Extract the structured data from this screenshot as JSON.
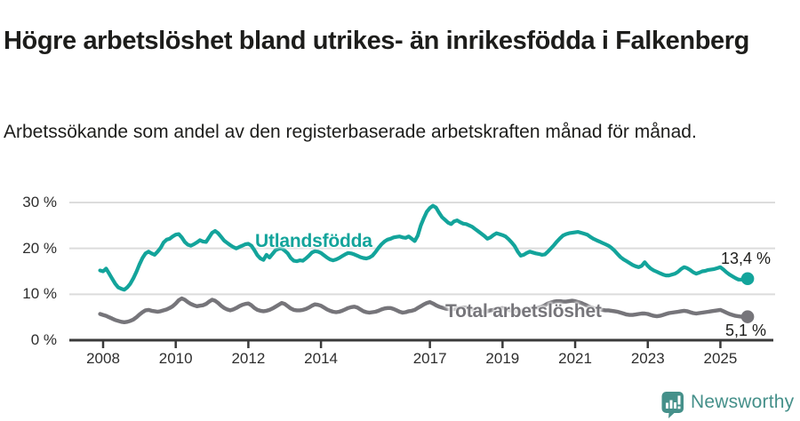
{
  "header": {
    "title": "Högre arbetslöshet bland utrikes- än inrikesfödda i Falkenberg",
    "subtitle": "Arbetssökande som andel av den registerbaserade arbetskraften månad för månad."
  },
  "chart_data": {
    "type": "line",
    "title": "Högre arbetslöshet bland utrikes- än inrikesfödda i Falkenberg",
    "x_start": 2007.917,
    "x_step": 0.08333,
    "x_axis": {
      "ticks": [
        2008,
        2010,
        2012,
        2014,
        2017,
        2019,
        2021,
        2023,
        2025
      ],
      "labels": [
        "2008",
        "2010",
        "2012",
        "2014",
        "2017",
        "2019",
        "2021",
        "2023",
        "2025"
      ]
    },
    "y_axis": {
      "tick_values": [
        0,
        10,
        20,
        30
      ],
      "labels": [
        "0 %",
        "10 %",
        "20 %",
        "30 %"
      ],
      "range": [
        0,
        32
      ],
      "unit": "%",
      "grid": true
    },
    "colors": {
      "grid": "#dcdcdc",
      "axis": "#3a3a3a",
      "text": "#2e2e2e"
    },
    "series": [
      {
        "name": "Utlandsfödda",
        "color": "#13a49b",
        "end_label": "13,4 %",
        "end_value": 13.4,
        "values": [
          15.2,
          15.0,
          15.6,
          14.5,
          13.4,
          12.3,
          11.5,
          11.2,
          11.0,
          11.5,
          12.3,
          13.5,
          14.9,
          16.5,
          17.9,
          18.9,
          19.3,
          18.9,
          18.6,
          19.3,
          20.1,
          21.3,
          21.9,
          22.1,
          22.6,
          23.0,
          23.1,
          22.4,
          21.4,
          20.8,
          20.6,
          20.9,
          21.3,
          21.8,
          21.5,
          21.4,
          22.4,
          23.4,
          23.8,
          23.3,
          22.5,
          21.7,
          21.2,
          20.7,
          20.3,
          20.0,
          20.3,
          20.6,
          20.9,
          21.0,
          20.6,
          19.6,
          18.5,
          17.8,
          17.5,
          18.6,
          18.0,
          18.8,
          19.6,
          19.9,
          20.0,
          19.5,
          18.9,
          17.9,
          17.3,
          17.2,
          17.4,
          17.3,
          17.8,
          18.4,
          19.1,
          19.4,
          19.3,
          19.0,
          18.5,
          18.0,
          17.6,
          17.4,
          17.6,
          17.9,
          18.3,
          18.7,
          19.0,
          18.9,
          18.7,
          18.4,
          18.1,
          17.9,
          17.8,
          18.0,
          18.4,
          19.2,
          20.1,
          20.9,
          21.5,
          21.9,
          22.1,
          22.4,
          22.5,
          22.6,
          22.4,
          22.3,
          22.6,
          22.1,
          21.6,
          22.8,
          25.0,
          26.6,
          28.0,
          28.8,
          29.3,
          28.9,
          27.8,
          26.8,
          26.2,
          25.6,
          25.3,
          25.9,
          26.1,
          25.7,
          25.4,
          25.3,
          25.0,
          24.7,
          24.2,
          23.7,
          23.2,
          22.7,
          22.1,
          22.4,
          22.9,
          23.3,
          23.1,
          22.9,
          22.6,
          22.0,
          21.3,
          20.5,
          19.3,
          18.4,
          18.6,
          19.0,
          19.3,
          19.1,
          18.9,
          18.8,
          18.6,
          18.7,
          19.3,
          20.0,
          20.7,
          21.5,
          22.2,
          22.8,
          23.1,
          23.3,
          23.4,
          23.5,
          23.6,
          23.4,
          23.2,
          23.0,
          22.5,
          22.1,
          21.8,
          21.5,
          21.2,
          20.9,
          20.6,
          20.1,
          19.5,
          18.8,
          18.1,
          17.6,
          17.2,
          16.8,
          16.4,
          16.1,
          15.9,
          16.2,
          17.0,
          16.2,
          15.6,
          15.2,
          14.9,
          14.6,
          14.3,
          14.1,
          14.1,
          14.3,
          14.5,
          14.9,
          15.5,
          15.9,
          15.7,
          15.3,
          14.8,
          14.5,
          14.7,
          15.0,
          15.1,
          15.3,
          15.4,
          15.5,
          15.7,
          15.9,
          15.4,
          14.8,
          14.3,
          13.9,
          13.5,
          13.2,
          13.2,
          13.3,
          13.4
        ]
      },
      {
        "name": "Total arbetslöshet",
        "color": "#76757a",
        "end_label": "5,1 %",
        "end_value": 5.1,
        "values": [
          5.7,
          5.5,
          5.3,
          5.0,
          4.7,
          4.4,
          4.2,
          4.0,
          3.9,
          4.0,
          4.2,
          4.5,
          5.0,
          5.6,
          6.1,
          6.5,
          6.6,
          6.4,
          6.3,
          6.2,
          6.3,
          6.5,
          6.7,
          7.0,
          7.4,
          8.0,
          8.7,
          9.1,
          8.8,
          8.3,
          7.9,
          7.6,
          7.4,
          7.5,
          7.6,
          7.9,
          8.4,
          8.8,
          8.6,
          8.1,
          7.5,
          7.0,
          6.7,
          6.5,
          6.7,
          7.0,
          7.4,
          7.7,
          7.9,
          8.0,
          7.6,
          7.0,
          6.6,
          6.4,
          6.3,
          6.4,
          6.6,
          6.9,
          7.3,
          7.7,
          8.1,
          7.9,
          7.4,
          6.9,
          6.6,
          6.5,
          6.5,
          6.6,
          6.8,
          7.1,
          7.5,
          7.8,
          7.7,
          7.5,
          7.1,
          6.7,
          6.4,
          6.2,
          6.1,
          6.2,
          6.4,
          6.7,
          7.0,
          7.2,
          7.3,
          7.1,
          6.7,
          6.3,
          6.1,
          6.0,
          6.1,
          6.2,
          6.4,
          6.7,
          6.9,
          7.0,
          7.0,
          6.8,
          6.5,
          6.2,
          6.0,
          6.1,
          6.3,
          6.4,
          6.6,
          7.0,
          7.4,
          7.8,
          8.1,
          8.3,
          8.0,
          7.6,
          7.3,
          7.1,
          6.9,
          6.8,
          6.7,
          6.8,
          6.9,
          7.0,
          7.1,
          7.1,
          6.9,
          6.7,
          6.5,
          6.3,
          6.2,
          6.2,
          6.3,
          6.5,
          6.6,
          6.8,
          6.9,
          7.0,
          6.8,
          6.6,
          6.4,
          6.3,
          6.3,
          6.4,
          6.5,
          6.6,
          6.8,
          6.9,
          7.0,
          7.1,
          7.3,
          7.6,
          8.0,
          8.2,
          8.4,
          8.5,
          8.5,
          8.4,
          8.4,
          8.5,
          8.6,
          8.5,
          8.3,
          8.1,
          7.8,
          7.5,
          7.2,
          7.0,
          6.8,
          6.7,
          6.6,
          6.5,
          6.5,
          6.4,
          6.3,
          6.2,
          6.0,
          5.8,
          5.6,
          5.5,
          5.5,
          5.6,
          5.7,
          5.8,
          5.8,
          5.7,
          5.5,
          5.3,
          5.2,
          5.3,
          5.5,
          5.7,
          5.9,
          6.0,
          6.1,
          6.2,
          6.3,
          6.4,
          6.3,
          6.1,
          5.9,
          5.8,
          5.9,
          6.0,
          6.1,
          6.2,
          6.3,
          6.4,
          6.5,
          6.6,
          6.3,
          6.0,
          5.7,
          5.5,
          5.3,
          5.2,
          5.1,
          5.1,
          5.1
        ]
      }
    ]
  },
  "footer": {
    "brand": "Newsworthy",
    "brand_color": "#45908a",
    "logo_icon": "newsworthy-speech-bubble-bar-chart-icon"
  }
}
